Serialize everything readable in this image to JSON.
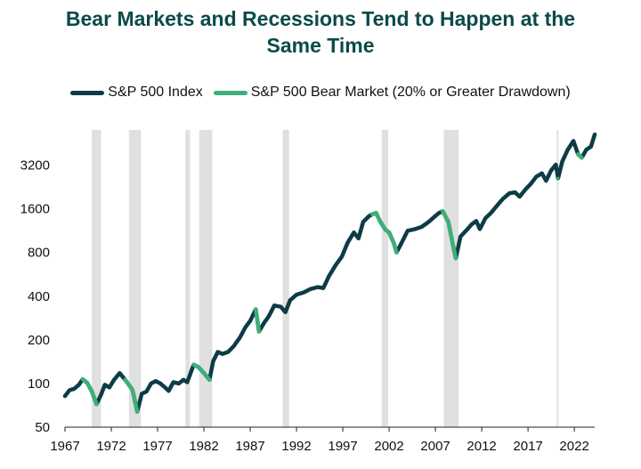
{
  "chart_data": {
    "type": "line",
    "title": "Bear Markets and Recessions Tend to Happen at the Same Time",
    "y_scale": "log2",
    "ylim": [
      50,
      5600
    ],
    "xlim": [
      1967,
      2024.2
    ],
    "x_ticks": [
      "1967",
      "1972",
      "1977",
      "1982",
      "1987",
      "1992",
      "1997",
      "2002",
      "2007",
      "2012",
      "2017",
      "2022"
    ],
    "y_ticks": [
      "50",
      "100",
      "200",
      "400",
      "800",
      "1600",
      "3200"
    ],
    "colors": {
      "index": "#0d3c46",
      "bear": "#3db07a",
      "recession": "#e0e0e0"
    },
    "legend": [
      {
        "name": "S&P 500 Index",
        "color": "#0d3c46"
      },
      {
        "name": "S&P 500 Bear Market  (20% or Greater Drawdown)",
        "color": "#3db07a"
      }
    ],
    "recessions": [
      [
        1969.9,
        1970.9
      ],
      [
        1973.9,
        1975.2
      ],
      [
        1980.0,
        1980.5
      ],
      [
        1981.5,
        1982.9
      ],
      [
        1990.5,
        1991.2
      ],
      [
        2001.2,
        2001.9
      ],
      [
        2007.9,
        2009.5
      ],
      [
        2020.1,
        2020.3
      ]
    ],
    "bear_markets": [
      [
        1968.9,
        1970.4
      ],
      [
        1973.0,
        1974.8
      ],
      [
        1980.9,
        1982.6
      ],
      [
        1987.6,
        1987.95
      ],
      [
        2000.2,
        2002.8
      ],
      [
        2007.8,
        2009.2
      ],
      [
        2020.1,
        2020.25
      ],
      [
        2022.0,
        2022.8
      ]
    ],
    "series": [
      {
        "name": "S&P 500 Index",
        "points": [
          [
            1967.0,
            82
          ],
          [
            1967.5,
            90
          ],
          [
            1968.0,
            92
          ],
          [
            1968.5,
            98
          ],
          [
            1968.9,
            107
          ],
          [
            1969.4,
            101
          ],
          [
            1969.9,
            88
          ],
          [
            1970.4,
            72
          ],
          [
            1970.9,
            84
          ],
          [
            1971.3,
            98
          ],
          [
            1971.8,
            94
          ],
          [
            1972.3,
            106
          ],
          [
            1972.9,
            118
          ],
          [
            1973.5,
            106
          ],
          [
            1973.9,
            98
          ],
          [
            1974.3,
            90
          ],
          [
            1974.8,
            64
          ],
          [
            1975.3,
            85
          ],
          [
            1975.8,
            88
          ],
          [
            1976.3,
            100
          ],
          [
            1976.8,
            104
          ],
          [
            1977.3,
            100
          ],
          [
            1977.8,
            94
          ],
          [
            1978.2,
            89
          ],
          [
            1978.7,
            102
          ],
          [
            1979.3,
            100
          ],
          [
            1979.8,
            106
          ],
          [
            1980.2,
            102
          ],
          [
            1980.9,
            135
          ],
          [
            1981.4,
            130
          ],
          [
            1981.9,
            120
          ],
          [
            1982.6,
            106
          ],
          [
            1983.0,
            142
          ],
          [
            1983.5,
            165
          ],
          [
            1984.0,
            160
          ],
          [
            1984.6,
            165
          ],
          [
            1985.2,
            180
          ],
          [
            1985.9,
            208
          ],
          [
            1986.5,
            245
          ],
          [
            1987.0,
            270
          ],
          [
            1987.6,
            325
          ],
          [
            1987.95,
            228
          ],
          [
            1988.5,
            262
          ],
          [
            1989.0,
            290
          ],
          [
            1989.6,
            345
          ],
          [
            1990.3,
            338
          ],
          [
            1990.8,
            310
          ],
          [
            1991.3,
            375
          ],
          [
            1992.0,
            410
          ],
          [
            1992.8,
            425
          ],
          [
            1993.5,
            448
          ],
          [
            1994.3,
            462
          ],
          [
            1994.9,
            455
          ],
          [
            1995.5,
            550
          ],
          [
            1996.2,
            650
          ],
          [
            1996.9,
            750
          ],
          [
            1997.5,
            930
          ],
          [
            1998.2,
            1100
          ],
          [
            1998.7,
            1000
          ],
          [
            1999.2,
            1300
          ],
          [
            1999.8,
            1420
          ],
          [
            2000.2,
            1470
          ],
          [
            2000.6,
            1500
          ],
          [
            2001.0,
            1320
          ],
          [
            2001.6,
            1150
          ],
          [
            2002.0,
            1100
          ],
          [
            2002.5,
            930
          ],
          [
            2002.8,
            800
          ],
          [
            2003.3,
            920
          ],
          [
            2004.0,
            1130
          ],
          [
            2004.8,
            1160
          ],
          [
            2005.5,
            1200
          ],
          [
            2006.2,
            1290
          ],
          [
            2006.9,
            1410
          ],
          [
            2007.4,
            1500
          ],
          [
            2007.8,
            1540
          ],
          [
            2008.4,
            1300
          ],
          [
            2008.9,
            900
          ],
          [
            2009.2,
            730
          ],
          [
            2009.7,
            1030
          ],
          [
            2010.4,
            1150
          ],
          [
            2010.9,
            1250
          ],
          [
            2011.4,
            1320
          ],
          [
            2011.8,
            1160
          ],
          [
            2012.4,
            1380
          ],
          [
            2013.0,
            1500
          ],
          [
            2013.7,
            1700
          ],
          [
            2014.3,
            1880
          ],
          [
            2015.0,
            2050
          ],
          [
            2015.6,
            2080
          ],
          [
            2016.1,
            1940
          ],
          [
            2016.7,
            2170
          ],
          [
            2017.3,
            2380
          ],
          [
            2017.9,
            2670
          ],
          [
            2018.5,
            2810
          ],
          [
            2018.95,
            2500
          ],
          [
            2019.5,
            2950
          ],
          [
            2020.0,
            3230
          ],
          [
            2020.25,
            2600
          ],
          [
            2020.7,
            3400
          ],
          [
            2021.3,
            4100
          ],
          [
            2021.9,
            4700
          ],
          [
            2022.4,
            3800
          ],
          [
            2022.8,
            3600
          ],
          [
            2023.3,
            4100
          ],
          [
            2023.8,
            4300
          ],
          [
            2024.2,
            5200
          ]
        ]
      }
    ]
  }
}
